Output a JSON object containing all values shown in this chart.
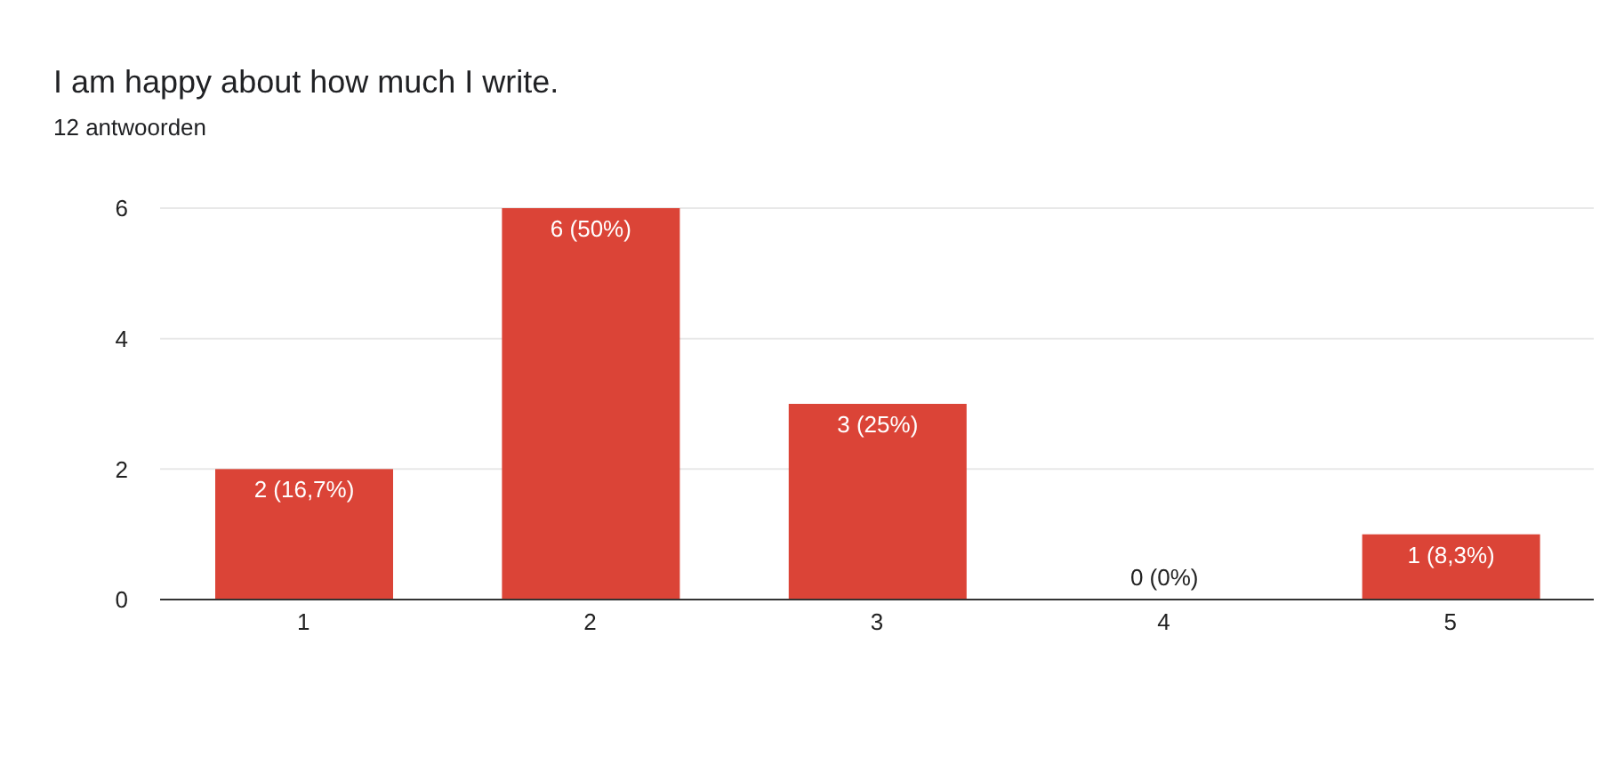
{
  "chart_data": {
    "type": "bar",
    "title": "I am happy about how much I write.",
    "subtitle": "12 antwoorden",
    "categories": [
      "1",
      "2",
      "3",
      "4",
      "5"
    ],
    "values": [
      2,
      6,
      3,
      0,
      1
    ],
    "value_labels": [
      "2 (16,7%)",
      "6 (50%)",
      "3 (25%)",
      "0 (0%)",
      "1 (8,3%)"
    ],
    "color": "#db4437",
    "ylim": [
      0,
      6
    ],
    "yticks": [
      0,
      2,
      4,
      6
    ],
    "grid": "y"
  }
}
